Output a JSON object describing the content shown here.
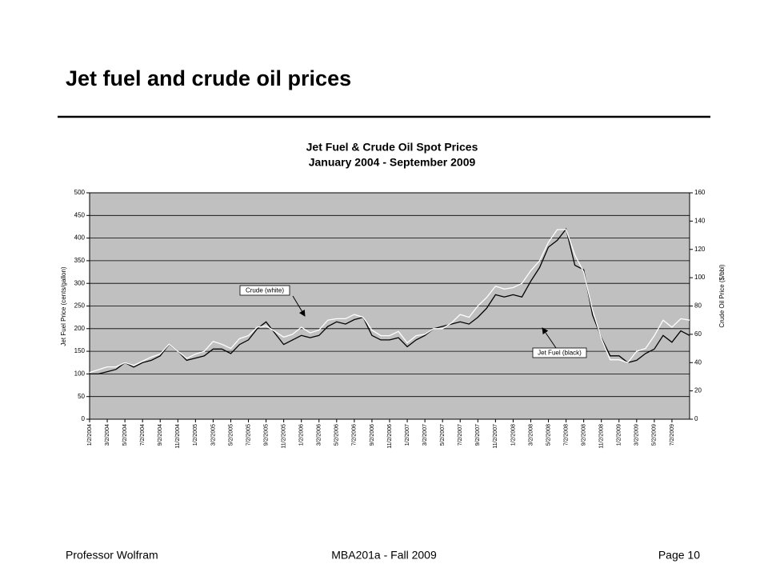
{
  "slide": {
    "title": "Jet fuel and crude oil prices",
    "footer": {
      "left": "Professor Wolfram",
      "center": "MBA201a - Fall 2009",
      "right": "Page 10"
    }
  },
  "chart_data": {
    "type": "line",
    "title": "Jet Fuel & Crude Oil Spot Prices",
    "subtitle": "January 2004 - September 2009",
    "ylabel": "Jet Fuel Price (cents/gallon)",
    "y2label": "Crude Oil Price ($/bbl)",
    "categories": [
      "1/2/2004",
      null,
      "3/2/2004",
      null,
      "5/2/2004",
      null,
      "7/2/2004",
      null,
      "9/2/2004",
      null,
      "11/2/2004",
      null,
      "1/2/2005",
      null,
      "3/2/2005",
      null,
      "5/2/2005",
      null,
      "7/2/2005",
      null,
      "9/2/2005",
      null,
      "11/2/2005",
      null,
      "1/2/2006",
      null,
      "3/2/2006",
      null,
      "5/2/2006",
      null,
      "7/2/2006",
      null,
      "9/2/2006",
      null,
      "11/2/2006",
      null,
      "1/2/2007",
      null,
      "3/2/2007",
      null,
      "5/2/2007",
      null,
      "7/2/2007",
      null,
      "9/2/2007",
      null,
      "11/2/2007",
      null,
      "1/2/2008",
      null,
      "3/2/2008",
      null,
      "5/2/2008",
      null,
      "7/2/2008",
      null,
      "9/2/2008",
      null,
      "11/2/2008",
      null,
      "1/2/2009",
      null,
      "3/2/2009",
      null,
      "5/2/2009",
      null,
      "7/2/2009",
      null,
      null
    ],
    "series": [
      {
        "color": "#000000",
        "values": [
          100,
          100,
          105,
          110,
          125,
          115,
          125,
          130,
          140,
          165,
          150,
          130,
          135,
          140,
          155,
          155,
          145,
          165,
          175,
          200,
          215,
          190,
          165,
          175,
          185,
          180,
          185,
          205,
          215,
          210,
          220,
          225,
          185,
          175,
          175,
          180,
          160,
          175,
          185,
          200,
          205,
          210,
          215,
          210,
          225,
          245,
          275,
          270,
          275,
          270,
          305,
          335,
          380,
          395,
          420,
          340,
          330,
          230,
          180,
          140,
          140,
          125,
          130,
          145,
          155,
          185,
          170,
          195,
          185
        ]
      },
      {
        "color": "#ffffff",
        "axis": "y2",
        "values": [
          33,
          35,
          37,
          37,
          40,
          38,
          41,
          44,
          46,
          53,
          48,
          43,
          46,
          48,
          55,
          53,
          50,
          57,
          59,
          65,
          66,
          62,
          58,
          60,
          65,
          61,
          63,
          70,
          71,
          71,
          74,
          72,
          63,
          59,
          59,
          62,
          54,
          59,
          60,
          64,
          64,
          68,
          74,
          72,
          80,
          86,
          94,
          92,
          93,
          96,
          105,
          112,
          125,
          134,
          134,
          116,
          104,
          77,
          57,
          42,
          42,
          40,
          48,
          50,
          59,
          70,
          65,
          71,
          70
        ]
      }
    ],
    "ylim": [
      0,
      500
    ],
    "yticks": [
      0,
      50,
      100,
      150,
      200,
      250,
      300,
      350,
      400,
      450,
      500
    ],
    "y2lim": [
      0,
      160
    ],
    "y2ticks": [
      0,
      20,
      40,
      60,
      80,
      100,
      120,
      140,
      160
    ],
    "grid": true,
    "background": "#c0c0c0",
    "annotations": [
      "Crude (white)",
      "Jet Fuel (black)"
    ]
  }
}
